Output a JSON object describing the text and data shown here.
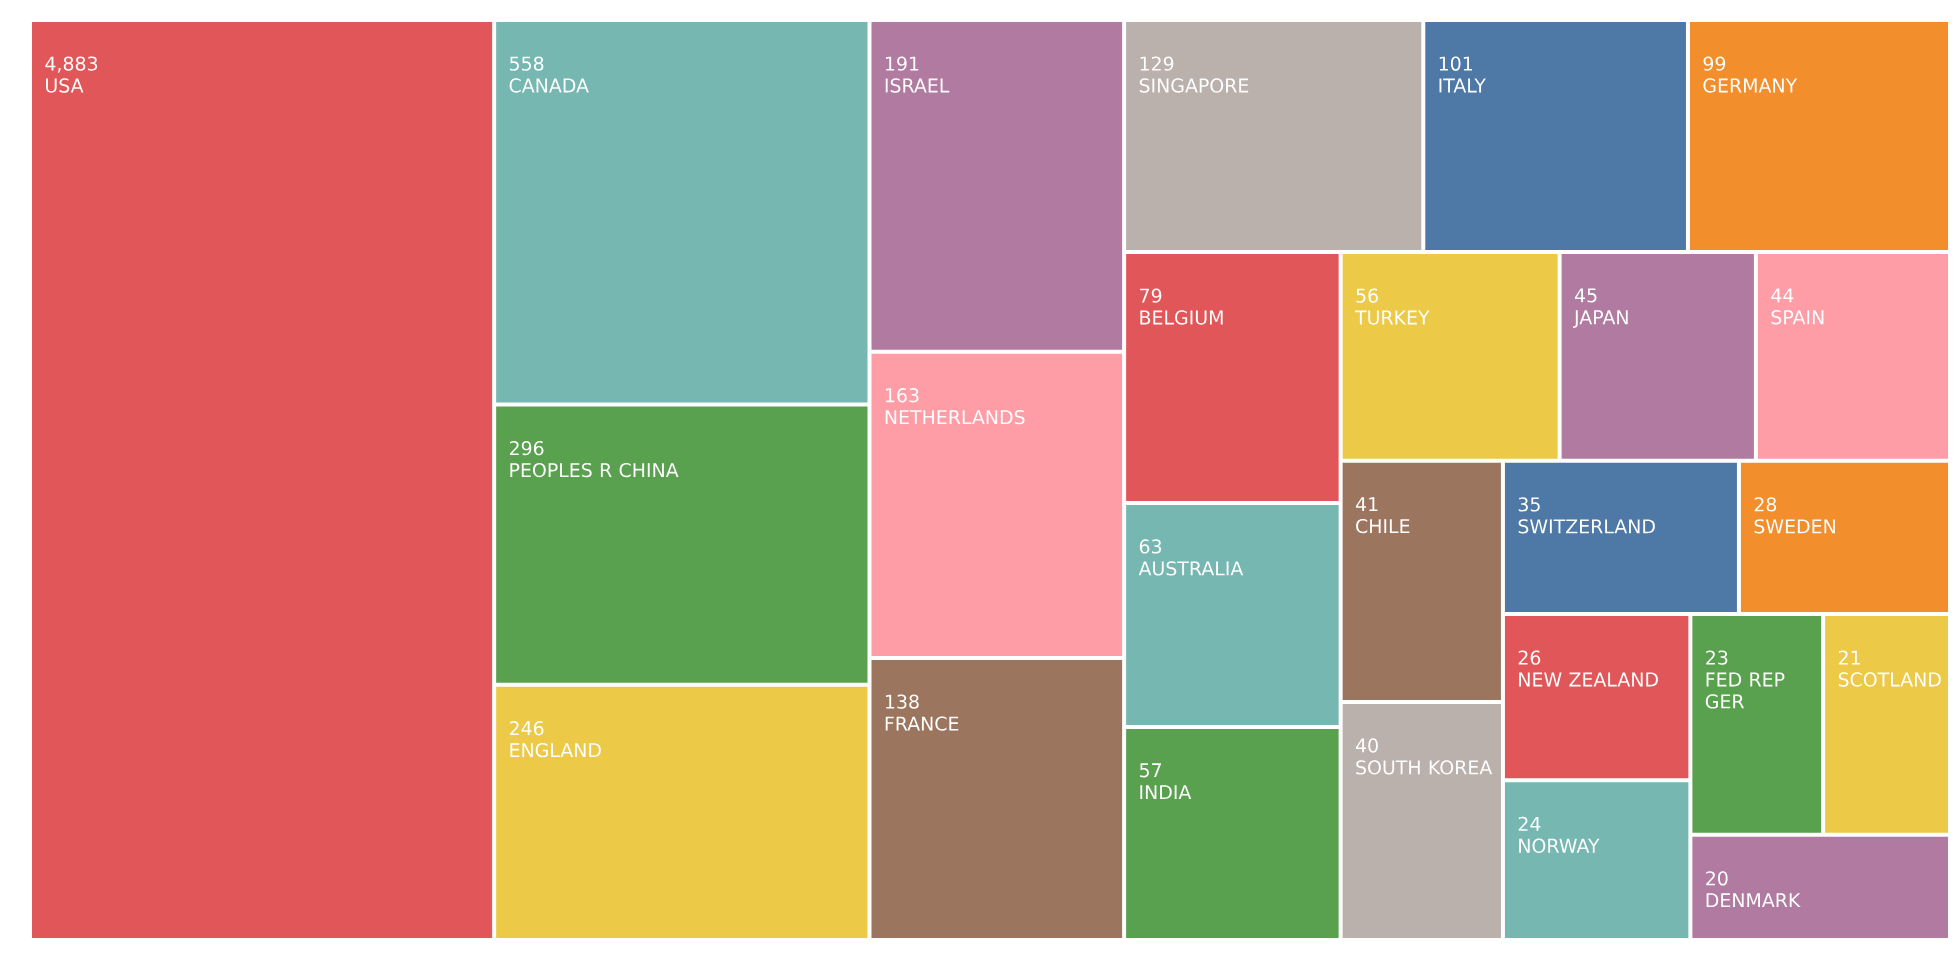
{
  "chart_data": {
    "type": "other",
    "categories": [
      "USA",
      "CANADA",
      "PEOPLES R CHINA",
      "ENGLAND",
      "ISRAEL",
      "NETHERLANDS",
      "FRANCE",
      "SINGAPORE",
      "ITALY",
      "GERMANY",
      "BELGIUM",
      "AUSTRALIA",
      "INDIA",
      "TURKEY",
      "JAPAN",
      "SPAIN",
      "CHILE",
      "SOUTH KOREA",
      "SWITZERLAND",
      "SWEDEN",
      "NEW ZEALAND",
      "NORWAY",
      "FED REP GER",
      "SCOTLAND",
      "DENMARK"
    ],
    "values": [
      4883,
      558,
      296,
      246,
      191,
      163,
      138,
      129,
      101,
      99,
      79,
      63,
      57,
      56,
      45,
      44,
      41,
      40,
      35,
      28,
      26,
      24,
      23,
      21,
      20
    ],
    "value_labels": [
      "4,883",
      "558",
      "296",
      "246",
      "191",
      "163",
      "138",
      "129",
      "101",
      "99",
      "79",
      "63",
      "57",
      "56",
      "45",
      "44",
      "41",
      "40",
      "35",
      "28",
      "26",
      "24",
      "23",
      "21",
      "20"
    ],
    "colors": [
      "#e15759",
      "#76b7b2",
      "#59a14f",
      "#edc948",
      "#b07aa1",
      "#ff9da7",
      "#9c755f",
      "#bab0ac",
      "#4e79a7",
      "#f28e2b",
      "#e15759",
      "#76b7b2",
      "#59a14f",
      "#edc948",
      "#b07aa1",
      "#ff9da7",
      "#9c755f",
      "#bab0ac",
      "#4e79a7",
      "#f28e2b",
      "#e15759",
      "#76b7b2",
      "#59a14f",
      "#edc948",
      "#b07aa1"
    ]
  }
}
